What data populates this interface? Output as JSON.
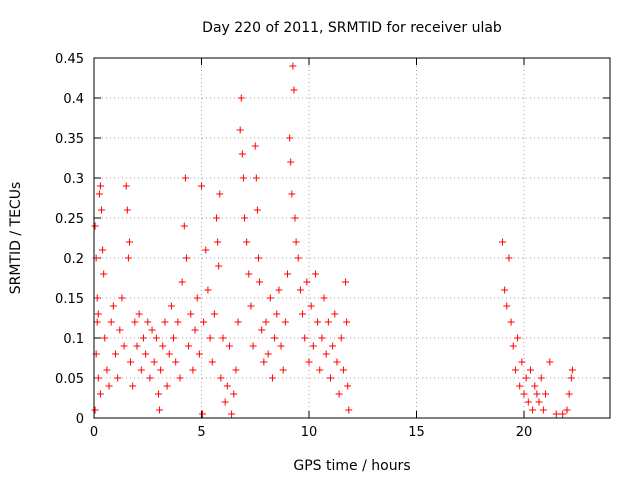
{
  "chart_data": {
    "type": "scatter",
    "title": "Day 220 of 2011, SRMTID for receiver ulab",
    "xlabel": "GPS time / hours",
    "ylabel": "SRMTID / TECUs",
    "xlim": [
      0,
      24
    ],
    "ylim": [
      0,
      0.45
    ],
    "xticks": [
      0,
      5,
      10,
      15,
      20
    ],
    "yticks": [
      0,
      0.05,
      0.1,
      0.15,
      0.2,
      0.25,
      0.3,
      0.35,
      0.4,
      0.45
    ],
    "xtick_labels": [
      "0",
      "5",
      "10",
      "15",
      "20"
    ],
    "ytick_labels": [
      "0",
      "0.05",
      "0.1",
      "0.15",
      "0.2",
      "0.25",
      "0.3",
      "0.35",
      "0.4",
      "0.45"
    ],
    "grid": true,
    "marker": "+",
    "marker_color": "#ff0000",
    "series": [
      {
        "name": "SRMTID",
        "points": [
          [
            0.05,
            0.24
          ],
          [
            0.1,
            0.2
          ],
          [
            0.15,
            0.15
          ],
          [
            0.2,
            0.13
          ],
          [
            0.25,
            0.28
          ],
          [
            0.3,
            0.29
          ],
          [
            0.35,
            0.26
          ],
          [
            0.4,
            0.21
          ],
          [
            0.1,
            0.08
          ],
          [
            0.2,
            0.05
          ],
          [
            0.3,
            0.03
          ],
          [
            0.05,
            0.01
          ],
          [
            0.15,
            0.12
          ],
          [
            0.45,
            0.18
          ],
          [
            0.5,
            0.1
          ],
          [
            0.6,
            0.06
          ],
          [
            0.7,
            0.04
          ],
          [
            0.8,
            0.12
          ],
          [
            0.9,
            0.14
          ],
          [
            1.0,
            0.08
          ],
          [
            1.1,
            0.05
          ],
          [
            1.2,
            0.11
          ],
          [
            1.3,
            0.15
          ],
          [
            1.4,
            0.09
          ],
          [
            1.5,
            0.29
          ],
          [
            1.55,
            0.26
          ],
          [
            1.6,
            0.2
          ],
          [
            1.65,
            0.22
          ],
          [
            1.7,
            0.07
          ],
          [
            1.8,
            0.04
          ],
          [
            1.9,
            0.12
          ],
          [
            2.0,
            0.09
          ],
          [
            2.1,
            0.13
          ],
          [
            2.2,
            0.06
          ],
          [
            2.3,
            0.1
          ],
          [
            2.4,
            0.08
          ],
          [
            2.5,
            0.12
          ],
          [
            2.6,
            0.05
          ],
          [
            2.7,
            0.11
          ],
          [
            2.8,
            0.07
          ],
          [
            2.9,
            0.1
          ],
          [
            3.0,
            0.03
          ],
          [
            3.05,
            0.01
          ],
          [
            3.1,
            0.06
          ],
          [
            3.2,
            0.09
          ],
          [
            3.3,
            0.12
          ],
          [
            3.4,
            0.04
          ],
          [
            3.5,
            0.08
          ],
          [
            3.6,
            0.14
          ],
          [
            3.7,
            0.1
          ],
          [
            3.8,
            0.07
          ],
          [
            3.9,
            0.12
          ],
          [
            4.0,
            0.05
          ],
          [
            4.1,
            0.17
          ],
          [
            4.2,
            0.24
          ],
          [
            4.25,
            0.3
          ],
          [
            4.3,
            0.2
          ],
          [
            4.4,
            0.09
          ],
          [
            4.5,
            0.13
          ],
          [
            4.6,
            0.06
          ],
          [
            4.7,
            0.11
          ],
          [
            4.8,
            0.15
          ],
          [
            4.9,
            0.08
          ],
          [
            5.0,
            0.29
          ],
          [
            5.05,
            0.005
          ],
          [
            5.1,
            0.12
          ],
          [
            5.2,
            0.21
          ],
          [
            5.3,
            0.16
          ],
          [
            5.4,
            0.1
          ],
          [
            5.5,
            0.07
          ],
          [
            5.6,
            0.13
          ],
          [
            5.7,
            0.25
          ],
          [
            5.75,
            0.22
          ],
          [
            5.8,
            0.19
          ],
          [
            5.85,
            0.28
          ],
          [
            5.9,
            0.05
          ],
          [
            6.0,
            0.1
          ],
          [
            6.1,
            0.02
          ],
          [
            6.2,
            0.04
          ],
          [
            6.3,
            0.09
          ],
          [
            6.4,
            0.005
          ],
          [
            6.5,
            0.03
          ],
          [
            6.6,
            0.06
          ],
          [
            6.7,
            0.12
          ],
          [
            6.8,
            0.36
          ],
          [
            6.85,
            0.4
          ],
          [
            6.9,
            0.33
          ],
          [
            6.95,
            0.3
          ],
          [
            7.0,
            0.25
          ],
          [
            7.1,
            0.22
          ],
          [
            7.2,
            0.18
          ],
          [
            7.3,
            0.14
          ],
          [
            7.4,
            0.09
          ],
          [
            7.5,
            0.34
          ],
          [
            7.55,
            0.3
          ],
          [
            7.6,
            0.26
          ],
          [
            7.65,
            0.2
          ],
          [
            7.7,
            0.17
          ],
          [
            7.8,
            0.11
          ],
          [
            7.9,
            0.07
          ],
          [
            8.0,
            0.12
          ],
          [
            8.1,
            0.08
          ],
          [
            8.2,
            0.15
          ],
          [
            8.3,
            0.05
          ],
          [
            8.4,
            0.1
          ],
          [
            8.5,
            0.13
          ],
          [
            8.6,
            0.16
          ],
          [
            8.7,
            0.09
          ],
          [
            8.8,
            0.06
          ],
          [
            8.9,
            0.12
          ],
          [
            9.0,
            0.18
          ],
          [
            9.1,
            0.35
          ],
          [
            9.15,
            0.32
          ],
          [
            9.2,
            0.28
          ],
          [
            9.25,
            0.44
          ],
          [
            9.3,
            0.41
          ],
          [
            9.35,
            0.25
          ],
          [
            9.4,
            0.22
          ],
          [
            9.5,
            0.2
          ],
          [
            9.6,
            0.16
          ],
          [
            9.7,
            0.13
          ],
          [
            9.8,
            0.1
          ],
          [
            9.9,
            0.17
          ],
          [
            10.0,
            0.07
          ],
          [
            10.1,
            0.14
          ],
          [
            10.2,
            0.09
          ],
          [
            10.3,
            0.18
          ],
          [
            10.4,
            0.12
          ],
          [
            10.5,
            0.06
          ],
          [
            10.6,
            0.1
          ],
          [
            10.7,
            0.15
          ],
          [
            10.8,
            0.08
          ],
          [
            10.9,
            0.12
          ],
          [
            11.0,
            0.05
          ],
          [
            11.1,
            0.09
          ],
          [
            11.2,
            0.13
          ],
          [
            11.3,
            0.07
          ],
          [
            11.4,
            0.03
          ],
          [
            11.5,
            0.1
          ],
          [
            11.6,
            0.06
          ],
          [
            11.7,
            0.17
          ],
          [
            11.75,
            0.12
          ],
          [
            11.8,
            0.04
          ],
          [
            11.85,
            0.01
          ],
          [
            19.0,
            0.22
          ],
          [
            19.1,
            0.16
          ],
          [
            19.2,
            0.14
          ],
          [
            19.3,
            0.2
          ],
          [
            19.4,
            0.12
          ],
          [
            19.5,
            0.09
          ],
          [
            19.6,
            0.06
          ],
          [
            19.7,
            0.1
          ],
          [
            19.8,
            0.04
          ],
          [
            19.9,
            0.07
          ],
          [
            20.0,
            0.03
          ],
          [
            20.1,
            0.05
          ],
          [
            20.2,
            0.02
          ],
          [
            20.3,
            0.06
          ],
          [
            20.4,
            0.01
          ],
          [
            20.5,
            0.04
          ],
          [
            20.6,
            0.03
          ],
          [
            20.7,
            0.02
          ],
          [
            20.8,
            0.05
          ],
          [
            20.9,
            0.01
          ],
          [
            21.0,
            0.03
          ],
          [
            21.2,
            0.07
          ],
          [
            21.5,
            0.005
          ],
          [
            21.8,
            0.005
          ],
          [
            22.0,
            0.01
          ],
          [
            22.1,
            0.03
          ],
          [
            22.2,
            0.05
          ],
          [
            22.25,
            0.06
          ]
        ]
      }
    ]
  }
}
